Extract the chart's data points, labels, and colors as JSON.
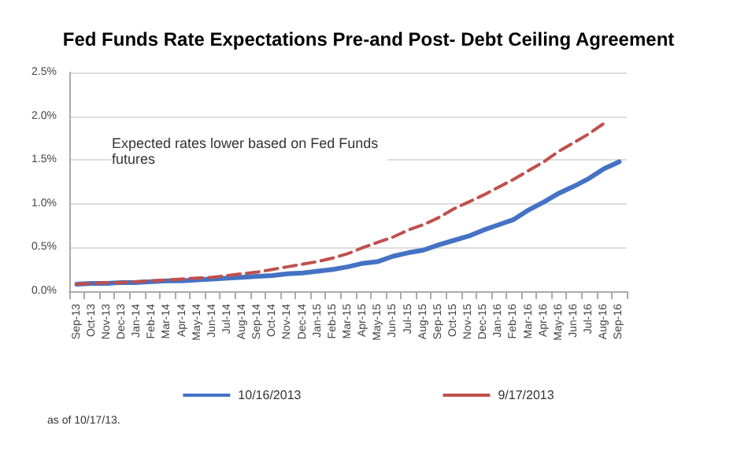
{
  "chart_data": {
    "type": "line",
    "title": "Fed Funds Rate Expectations Pre-and Post- Debt Ceiling Agreement",
    "categories": [
      "Sep-13",
      "Oct-13",
      "Nov-13",
      "Dec-13",
      "Jan-14",
      "Feb-14",
      "Mar-14",
      "Apr-14",
      "May-14",
      "Jun-14",
      "Jul-14",
      "Aug-14",
      "Sep-14",
      "Oct-14",
      "Nov-14",
      "Dec-14",
      "Jan-15",
      "Feb-15",
      "Mar-15",
      "Apr-15",
      "May-15",
      "Jun-15",
      "Jul-15",
      "Aug-15",
      "Sep-15",
      "Oct-15",
      "Nov-15",
      "Dec-15",
      "Jan-16",
      "Feb-16",
      "Mar-16",
      "Apr-16",
      "May-16",
      "Jun-16",
      "Jul-16",
      "Aug-16",
      "Sep-16"
    ],
    "series": [
      {
        "name": "10/16/2013",
        "color": "#4472c4",
        "line_style": "solid",
        "values": [
          0.08,
          0.09,
          0.09,
          0.1,
          0.1,
          0.11,
          0.12,
          0.12,
          0.13,
          0.14,
          0.15,
          0.16,
          0.17,
          0.18,
          0.2,
          0.21,
          0.23,
          0.25,
          0.28,
          0.32,
          0.34,
          0.4,
          0.44,
          0.47,
          0.53,
          0.58,
          0.63,
          0.7,
          0.76,
          0.82,
          0.93,
          1.02,
          1.12,
          1.2,
          1.29,
          1.4,
          1.48
        ]
      },
      {
        "name": "9/17/2013",
        "color": "#c0504d",
        "line_style": "dashed",
        "values": [
          0.08,
          0.09,
          0.1,
          0.1,
          0.11,
          0.12,
          0.13,
          0.14,
          0.15,
          0.16,
          0.18,
          0.2,
          0.22,
          0.25,
          0.28,
          0.31,
          0.34,
          0.38,
          0.43,
          0.5,
          0.56,
          0.62,
          0.7,
          0.76,
          0.84,
          0.94,
          1.02,
          1.1,
          1.19,
          1.28,
          1.38,
          1.48,
          1.6,
          1.7,
          1.8,
          1.92,
          null
        ]
      }
    ],
    "ylim": [
      0,
      2.5
    ],
    "yticks": [
      {
        "value": 0,
        "label": "0.0%"
      },
      {
        "value": 0.5,
        "label": "0.5%"
      },
      {
        "value": 1,
        "label": "1.0%"
      },
      {
        "value": 1.5,
        "label": "1.5%"
      },
      {
        "value": 2,
        "label": "2.0%"
      },
      {
        "value": 2.5,
        "label": "2.5%"
      }
    ],
    "grid": "y",
    "legend": "bottom",
    "marker": "none",
    "annotations": [
      "Expected rates lower based on Fed Funds futures",
      "as of 10/17/13."
    ]
  }
}
